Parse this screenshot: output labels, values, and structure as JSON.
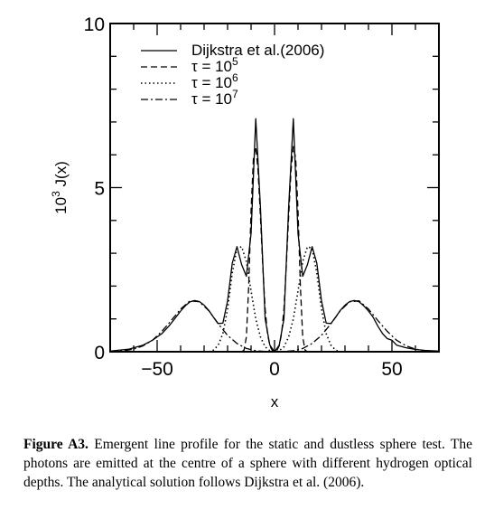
{
  "chart_data": {
    "type": "line",
    "title": "",
    "xlabel": "x",
    "ylabel_prefix": "10",
    "ylabel_exp": "3",
    "ylabel_suffix": " J(x)",
    "xlim": [
      -70,
      70
    ],
    "ylim": [
      0,
      10
    ],
    "xticks": [
      -50,
      0,
      50
    ],
    "xtick_labels": [
      "−50",
      "0",
      "50"
    ],
    "yticks": [
      0,
      5,
      10
    ],
    "ytick_labels": [
      "0",
      "5",
      "10"
    ],
    "grid": false,
    "legend_position": "top-left",
    "series": [
      {
        "name": "Dijkstra et al.(2006)",
        "style": "solid",
        "x": [
          -70,
          -62,
          -56,
          -52,
          -48,
          -45,
          -42,
          -40,
          -38,
          -36,
          -34,
          -32,
          -30,
          -28,
          -26,
          -24,
          -22,
          -20,
          -18,
          -16,
          -14,
          -12,
          -10,
          -8,
          -6,
          -4,
          -2,
          0,
          2,
          4,
          6,
          8,
          10,
          12,
          14,
          16,
          18,
          20,
          22,
          24,
          26,
          28,
          30,
          32,
          34,
          36,
          38,
          40,
          42,
          44,
          46,
          48,
          50,
          52,
          56,
          60,
          64,
          70
        ],
        "y": [
          0.02,
          0.08,
          0.2,
          0.35,
          0.55,
          0.78,
          1.05,
          1.24,
          1.4,
          1.52,
          1.56,
          1.53,
          1.42,
          1.26,
          1.05,
          0.86,
          0.87,
          1.55,
          2.7,
          3.2,
          2.65,
          2.3,
          3.6,
          7.1,
          4.4,
          1.0,
          0.2,
          0.0,
          0.2,
          1.0,
          4.4,
          7.1,
          3.6,
          2.3,
          2.65,
          3.2,
          2.7,
          1.55,
          0.87,
          0.86,
          1.05,
          1.26,
          1.42,
          1.53,
          1.56,
          1.52,
          1.4,
          1.24,
          1.05,
          0.78,
          0.55,
          0.4,
          0.35,
          0.2,
          0.12,
          0.07,
          0.04,
          0.02
        ]
      },
      {
        "name": "τ = 10^5",
        "name_base": "τ = 10",
        "name_exp": "5",
        "style": "dashed",
        "x": [
          -14,
          -13,
          -12,
          -11,
          -10,
          -9,
          -8,
          -7,
          -6,
          -5,
          -4,
          -3,
          -2,
          -1,
          0,
          1,
          2,
          3,
          4,
          5,
          6,
          7,
          8,
          9,
          10,
          11,
          12,
          13,
          14
        ],
        "y": [
          0.0,
          0.05,
          0.45,
          2.0,
          4.3,
          5.9,
          6.25,
          5.5,
          4.1,
          2.6,
          1.3,
          0.55,
          0.18,
          0.04,
          0.0,
          0.04,
          0.18,
          0.55,
          1.3,
          2.6,
          4.1,
          5.5,
          6.25,
          5.9,
          4.3,
          2.0,
          0.45,
          0.05,
          0.0
        ]
      },
      {
        "name": "τ = 10^6",
        "name_base": "τ = 10",
        "name_exp": "6",
        "style": "dotted",
        "x": [
          -28,
          -26,
          -24,
          -22,
          -20,
          -18,
          -16,
          -14,
          -12,
          -10,
          -8,
          -6,
          -4,
          -2,
          0,
          2,
          4,
          6,
          8,
          10,
          12,
          14,
          16,
          18,
          20,
          22,
          24,
          26,
          28
        ],
        "y": [
          0.0,
          0.05,
          0.2,
          0.55,
          1.3,
          2.4,
          3.15,
          3.2,
          2.75,
          1.85,
          1.0,
          0.45,
          0.15,
          0.03,
          0.0,
          0.03,
          0.15,
          0.45,
          1.0,
          1.85,
          2.75,
          3.2,
          3.15,
          2.4,
          1.3,
          0.55,
          0.2,
          0.05,
          0.0
        ]
      },
      {
        "name": "τ = 10^7",
        "name_base": "τ = 10",
        "name_exp": "7",
        "style": "dashdot",
        "x": [
          -70,
          -64,
          -60,
          -56,
          -52,
          -48,
          -44,
          -40,
          -36,
          -32,
          -28,
          -24,
          -20,
          -16,
          -12,
          -8,
          -4,
          0,
          4,
          8,
          12,
          16,
          20,
          24,
          28,
          32,
          36,
          40,
          44,
          48,
          52,
          56,
          60,
          64,
          70
        ],
        "y": [
          0.0,
          0.03,
          0.08,
          0.18,
          0.35,
          0.62,
          0.95,
          1.3,
          1.55,
          1.52,
          1.25,
          0.85,
          0.5,
          0.25,
          0.1,
          0.03,
          0.01,
          0.0,
          0.01,
          0.03,
          0.1,
          0.25,
          0.5,
          0.85,
          1.25,
          1.52,
          1.55,
          1.3,
          0.95,
          0.62,
          0.35,
          0.18,
          0.08,
          0.03,
          0.0
        ]
      }
    ]
  },
  "caption": {
    "label": "Figure A3.",
    "text": " Emergent line profile for the static and dustless sphere test. The photons are emitted at the centre of a sphere with different hydrogen optical depths. The analytical solution follows Dijkstra et al. (2006)."
  }
}
